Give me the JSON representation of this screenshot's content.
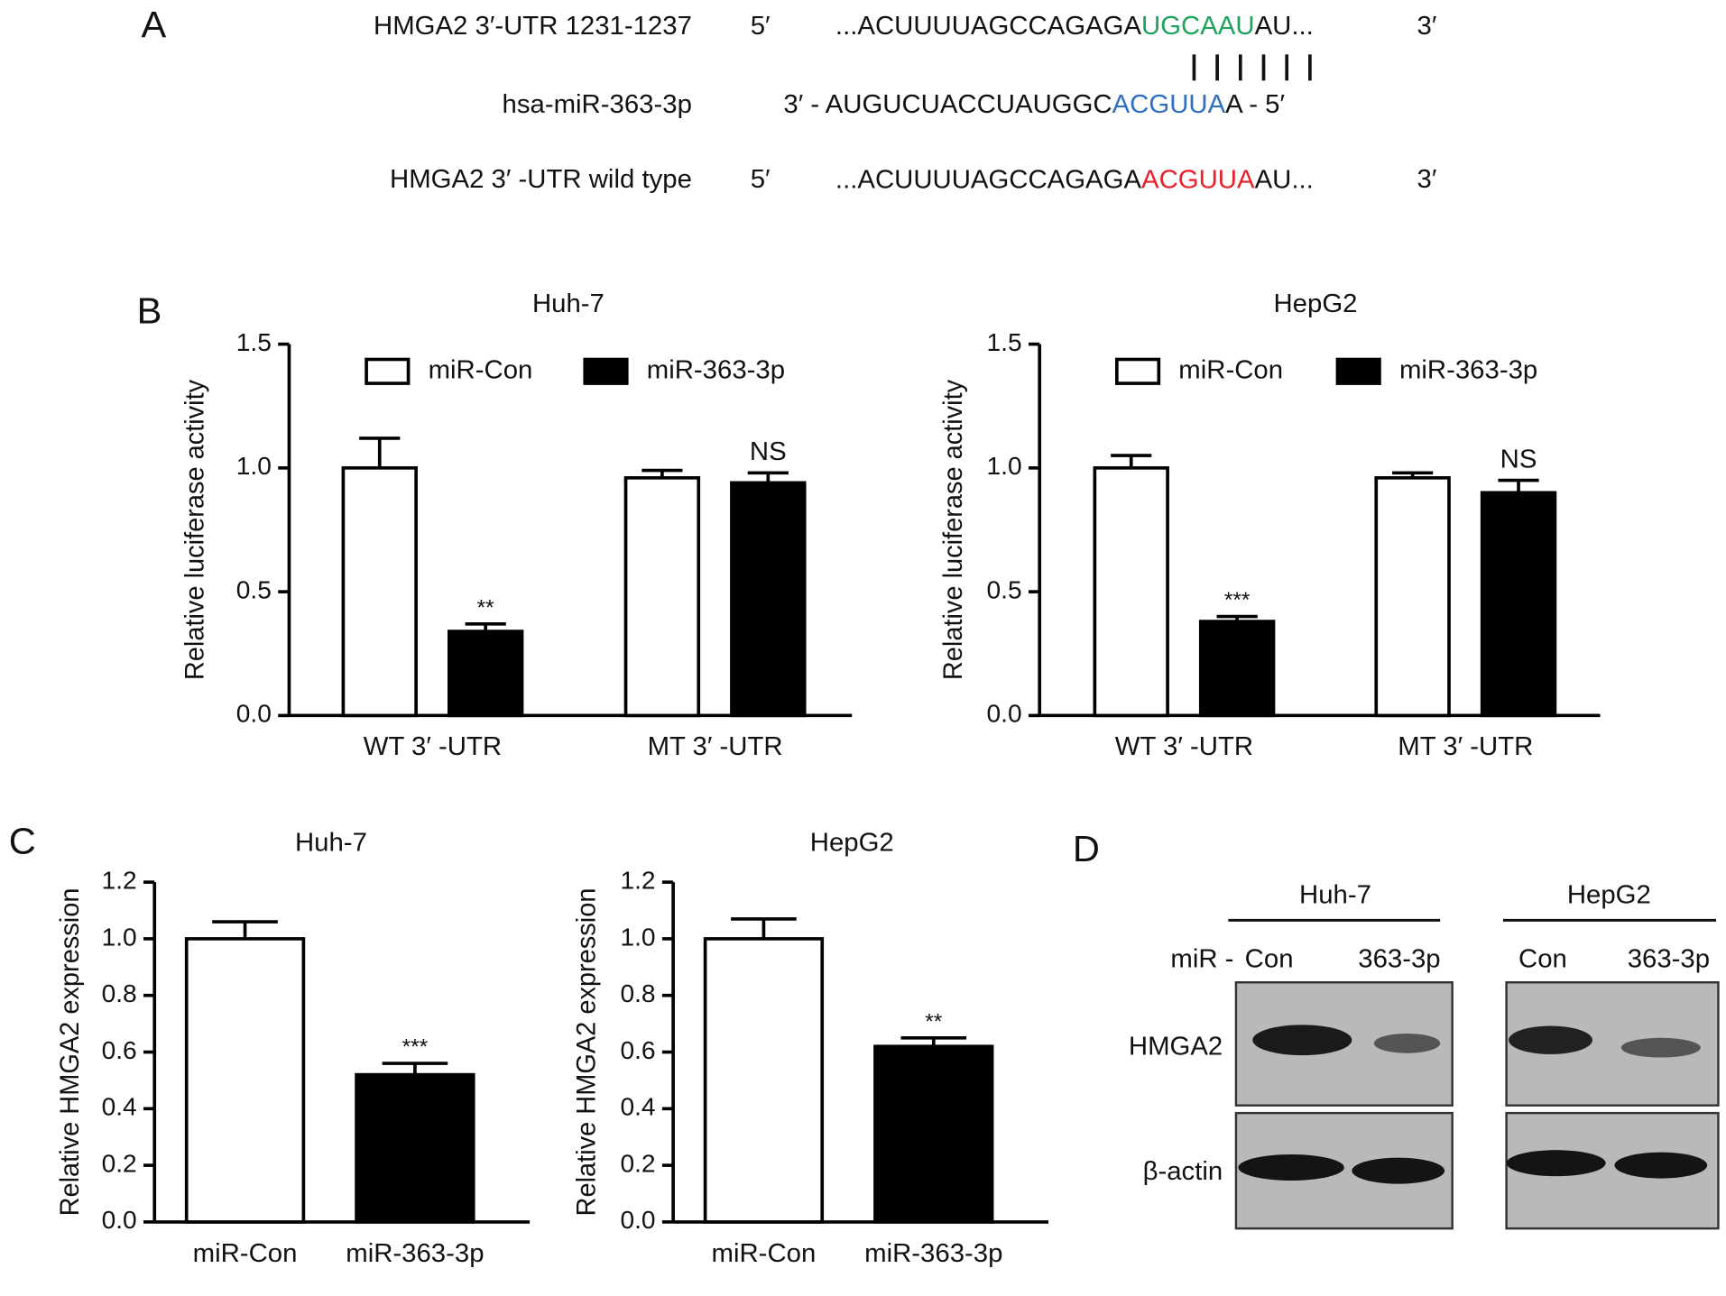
{
  "panel_labels": [
    "A",
    "B",
    "C",
    "D"
  ],
  "panel_a": {
    "rows": [
      {
        "label": "HMGA2 3′-UTR 1231-1237",
        "five": "5′",
        "before": "...ACUUUUAGCCAGAGA",
        "motif": "UGCAAU",
        "after": "AU...",
        "three": "3′"
      },
      {
        "label": "hsa-miR-363-3p",
        "before": "3′ - AUGUCUACCUAUGGC",
        "motif": "ACGUUA",
        "after": "A - 5′"
      },
      {
        "label": "HMGA2 3′ -UTR wild type",
        "five": "5′",
        "before": "...ACUUUUAGCCAGAGA",
        "motif": "ACGUUA",
        "after": "AU...",
        "three": "3′"
      }
    ]
  },
  "chart_data": [
    {
      "type": "bar",
      "title": "Huh-7",
      "y_label": "Relative luciferase activity",
      "categories": [
        "WT 3′ -UTR",
        "MT 3′ -UTR"
      ],
      "series": [
        {
          "name": "miR-Con",
          "color": "#ffffff",
          "values": [
            1.0,
            0.96
          ],
          "errors": [
            0.12,
            0.03
          ]
        },
        {
          "name": "miR-363-3p",
          "color": "#000000",
          "values": [
            0.34,
            0.94
          ],
          "errors": [
            0.03,
            0.04
          ],
          "annotations": [
            "**",
            "NS"
          ]
        }
      ],
      "ylim": [
        0,
        1.5
      ],
      "yticks": [
        {
          "value": 0,
          "label": "0.0"
        },
        0.5,
        {
          "value": 1,
          "label": "1.0"
        },
        1.5
      ],
      "legend": "top"
    },
    {
      "type": "bar",
      "title": "HepG2",
      "y_label": "Relative luciferase activity",
      "categories": [
        "WT 3′ -UTR",
        "MT 3′ -UTR"
      ],
      "series": [
        {
          "name": "miR-Con",
          "color": "#ffffff",
          "values": [
            1.0,
            0.96
          ],
          "errors": [
            0.05,
            0.02
          ]
        },
        {
          "name": "miR-363-3p",
          "color": "#000000",
          "values": [
            0.38,
            0.9
          ],
          "errors": [
            0.02,
            0.05
          ],
          "annotations": [
            "***",
            "NS"
          ]
        }
      ],
      "ylim": [
        0,
        1.5
      ],
      "yticks": [
        {
          "value": 0,
          "label": "0.0"
        },
        0.5,
        {
          "value": 1,
          "label": "1.0"
        },
        1.5
      ],
      "legend": "top"
    },
    {
      "type": "bar",
      "title": "Huh-7",
      "y_label": "Relative HMGA2 expression",
      "categories": [
        "miR-Con",
        "miR-363-3p"
      ],
      "colors": [
        "#ffffff",
        "#000000"
      ],
      "values": [
        1.0,
        0.52
      ],
      "errors": [
        0.06,
        0.04
      ],
      "annotations": [
        null,
        "***"
      ],
      "ylim": [
        0,
        1.2
      ],
      "yticks": [
        {
          "value": 0,
          "label": "0.0"
        },
        0.2,
        0.4,
        0.6,
        0.8,
        {
          "value": 1,
          "label": "1.0"
        },
        1.2
      ]
    },
    {
      "type": "bar",
      "title": "HepG2",
      "y_label": "Relative HMGA2 expression",
      "categories": [
        "miR-Con",
        "miR-363-3p"
      ],
      "colors": [
        "#ffffff",
        "#000000"
      ],
      "values": [
        1.0,
        0.62
      ],
      "errors": [
        0.07,
        0.03
      ],
      "annotations": [
        null,
        "**"
      ],
      "ylim": [
        0,
        1.2
      ],
      "yticks": [
        {
          "value": 0,
          "label": "0.0"
        },
        0.2,
        0.4,
        0.6,
        0.8,
        {
          "value": 1,
          "label": "1.0"
        },
        1.2
      ]
    }
  ],
  "panel_d": {
    "cell_lines": [
      "Huh-7",
      "HepG2"
    ],
    "lane_prefix": "miR -",
    "lanes": [
      "Con",
      "363-3p",
      "Con",
      "363-3p"
    ],
    "proteins": [
      "HMGA2",
      "β-actin"
    ]
  }
}
